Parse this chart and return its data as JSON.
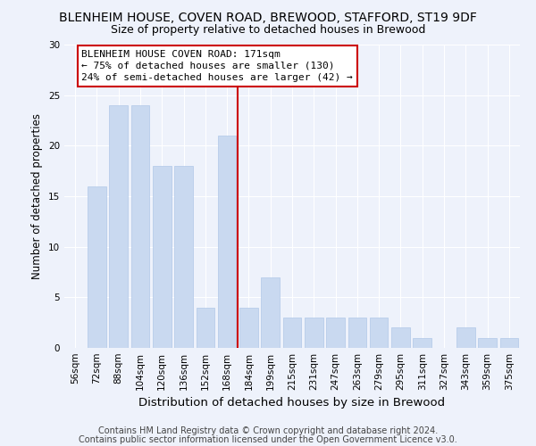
{
  "title1": "BLENHEIM HOUSE, COVEN ROAD, BREWOOD, STAFFORD, ST19 9DF",
  "title2": "Size of property relative to detached houses in Brewood",
  "xlabel": "Distribution of detached houses by size in Brewood",
  "ylabel": "Number of detached properties",
  "categories": [
    "56sqm",
    "72sqm",
    "88sqm",
    "104sqm",
    "120sqm",
    "136sqm",
    "152sqm",
    "168sqm",
    "184sqm",
    "199sqm",
    "215sqm",
    "231sqm",
    "247sqm",
    "263sqm",
    "279sqm",
    "295sqm",
    "311sqm",
    "327sqm",
    "343sqm",
    "359sqm",
    "375sqm"
  ],
  "values": [
    0,
    16,
    24,
    24,
    18,
    18,
    4,
    21,
    4,
    7,
    3,
    3,
    3,
    3,
    3,
    2,
    1,
    0,
    2,
    1,
    1
  ],
  "bar_color": "#c9d9f0",
  "bar_edge_color": "#b0c8e8",
  "annotation_line_label": "BLENHEIM HOUSE COVEN ROAD: 171sqm",
  "annotation_line1": "← 75% of detached houses are smaller (130)",
  "annotation_line2": "24% of semi-detached houses are larger (42) →",
  "annotation_box_color": "#ffffff",
  "annotation_box_edge_color": "#cc0000",
  "vline_color": "#cc0000",
  "footnote1": "Contains HM Land Registry data © Crown copyright and database right 2024.",
  "footnote2": "Contains public sector information licensed under the Open Government Licence v3.0.",
  "ylim": [
    0,
    30
  ],
  "yticks": [
    0,
    5,
    10,
    15,
    20,
    25,
    30
  ],
  "bg_color": "#eef2fb",
  "plot_bg_color": "#eef2fb",
  "title1_fontsize": 10,
  "title2_fontsize": 9,
  "xlabel_fontsize": 9.5,
  "ylabel_fontsize": 8.5,
  "tick_fontsize": 7.5,
  "annotation_fontsize": 8,
  "footnote_fontsize": 7
}
